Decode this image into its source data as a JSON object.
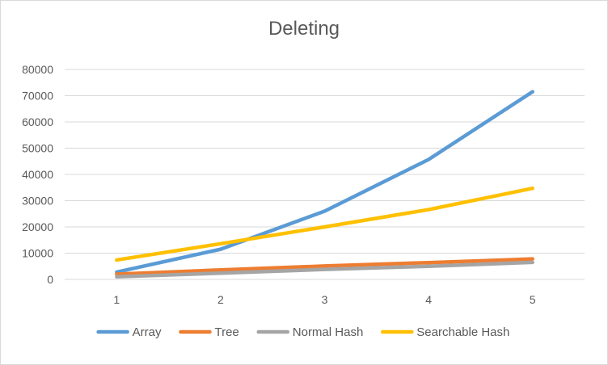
{
  "chart_data": {
    "type": "line",
    "title": "Deleting",
    "xlabel": "",
    "ylabel": "",
    "categories": [
      "1",
      "2",
      "3",
      "4",
      "5"
    ],
    "ylim": [
      0,
      80000
    ],
    "yticks": [
      0,
      10000,
      20000,
      30000,
      40000,
      50000,
      60000,
      70000,
      80000
    ],
    "grid": true,
    "legend_position": "bottom",
    "series": [
      {
        "name": "Array",
        "color": "#5b9bd5",
        "values": [
          2800,
          11500,
          26000,
          45700,
          71500
        ]
      },
      {
        "name": "Tree",
        "color": "#ed7d31",
        "values": [
          2000,
          3600,
          5100,
          6400,
          7800
        ]
      },
      {
        "name": "Normal Hash",
        "color": "#a5a5a5",
        "values": [
          1000,
          2400,
          3800,
          5000,
          6500
        ]
      },
      {
        "name": "Searchable Hash",
        "color": "#ffc000",
        "values": [
          7400,
          13600,
          20000,
          26600,
          34700
        ]
      }
    ]
  }
}
